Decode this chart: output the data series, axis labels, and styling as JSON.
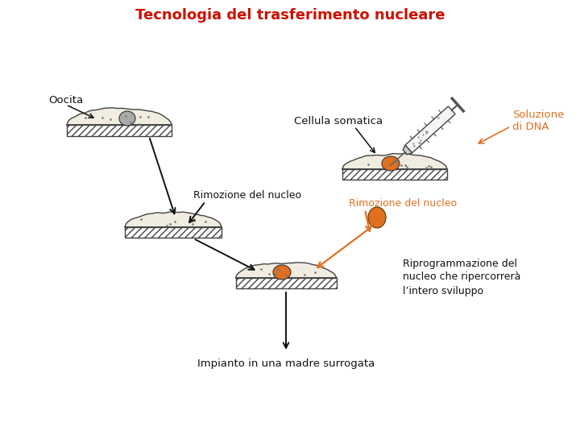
{
  "title": "Tecnologia del trasferimento nucleare",
  "title_color": "#cc1100",
  "title_fontsize": 13,
  "bg_color": "#ffffff",
  "orange": "#e07020",
  "black": "#111111",
  "gray": "#999999",
  "label_oocita": "Oocita",
  "label_cellula": "Cellula somatica",
  "label_soluzione": "Soluzione\ndi DNA",
  "label_rimozione_left": "Rimozione del nucleo",
  "label_rimozione_right": "Rimozione del nucleo",
  "label_riprogrammazione": "Riprogrammazione del\nnucleo che ripercorrerà\nl’intero sviluppo",
  "label_impianto": "Impianto in una madre surrogata",
  "figsize": [
    7.2,
    5.4
  ],
  "dpi": 100
}
